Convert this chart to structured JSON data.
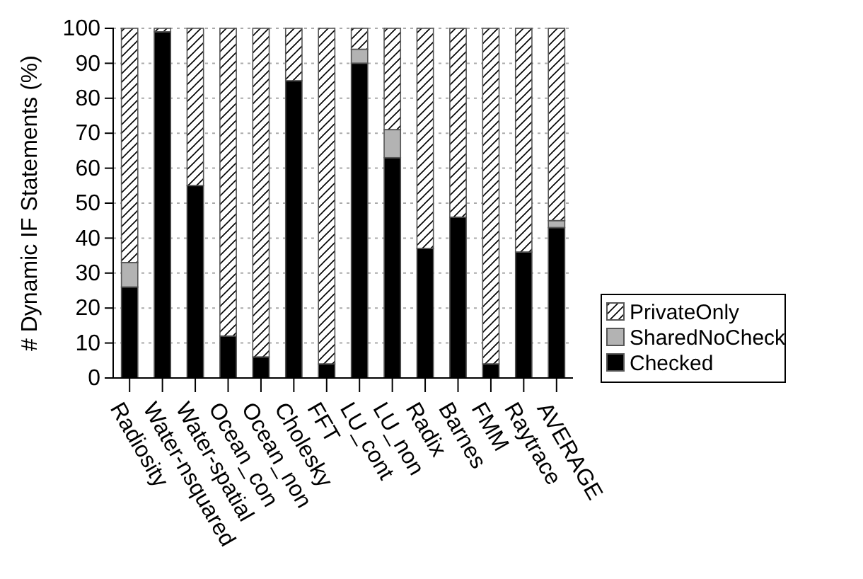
{
  "chart_data": {
    "type": "bar",
    "ylabel": "# Dynamic IF Statements (%)",
    "categories": [
      "Radiosity",
      "Water-nsquared",
      "Water-spatial",
      "Ocean_con",
      "Ocean_non",
      "Cholesky",
      "FFT",
      "LU_cont",
      "LU_non",
      "Radix",
      "Barnes",
      "FMM",
      "Raytrace",
      "AVERAGE"
    ],
    "series": [
      {
        "name": "Checked",
        "color": "#000000",
        "values": [
          26,
          99,
          55,
          12,
          6,
          85,
          4,
          90,
          63,
          37,
          46,
          4,
          36,
          43
        ]
      },
      {
        "name": "SharedNoCheck",
        "color": "#b3b3b3",
        "values": [
          7,
          0,
          0,
          0,
          0,
          0,
          0,
          4,
          8,
          0,
          0,
          0,
          0,
          2
        ]
      },
      {
        "name": "PrivateOnly",
        "color": "#ffffff",
        "values": [
          67,
          1,
          45,
          88,
          94,
          15,
          96,
          6,
          29,
          63,
          54,
          96,
          64,
          55
        ]
      }
    ],
    "stacked": true,
    "ylim": [
      0,
      100
    ],
    "yticks": [
      0,
      10,
      20,
      30,
      40,
      50,
      60,
      70,
      80,
      90,
      100
    ],
    "grid": "y",
    "legend": "right"
  }
}
